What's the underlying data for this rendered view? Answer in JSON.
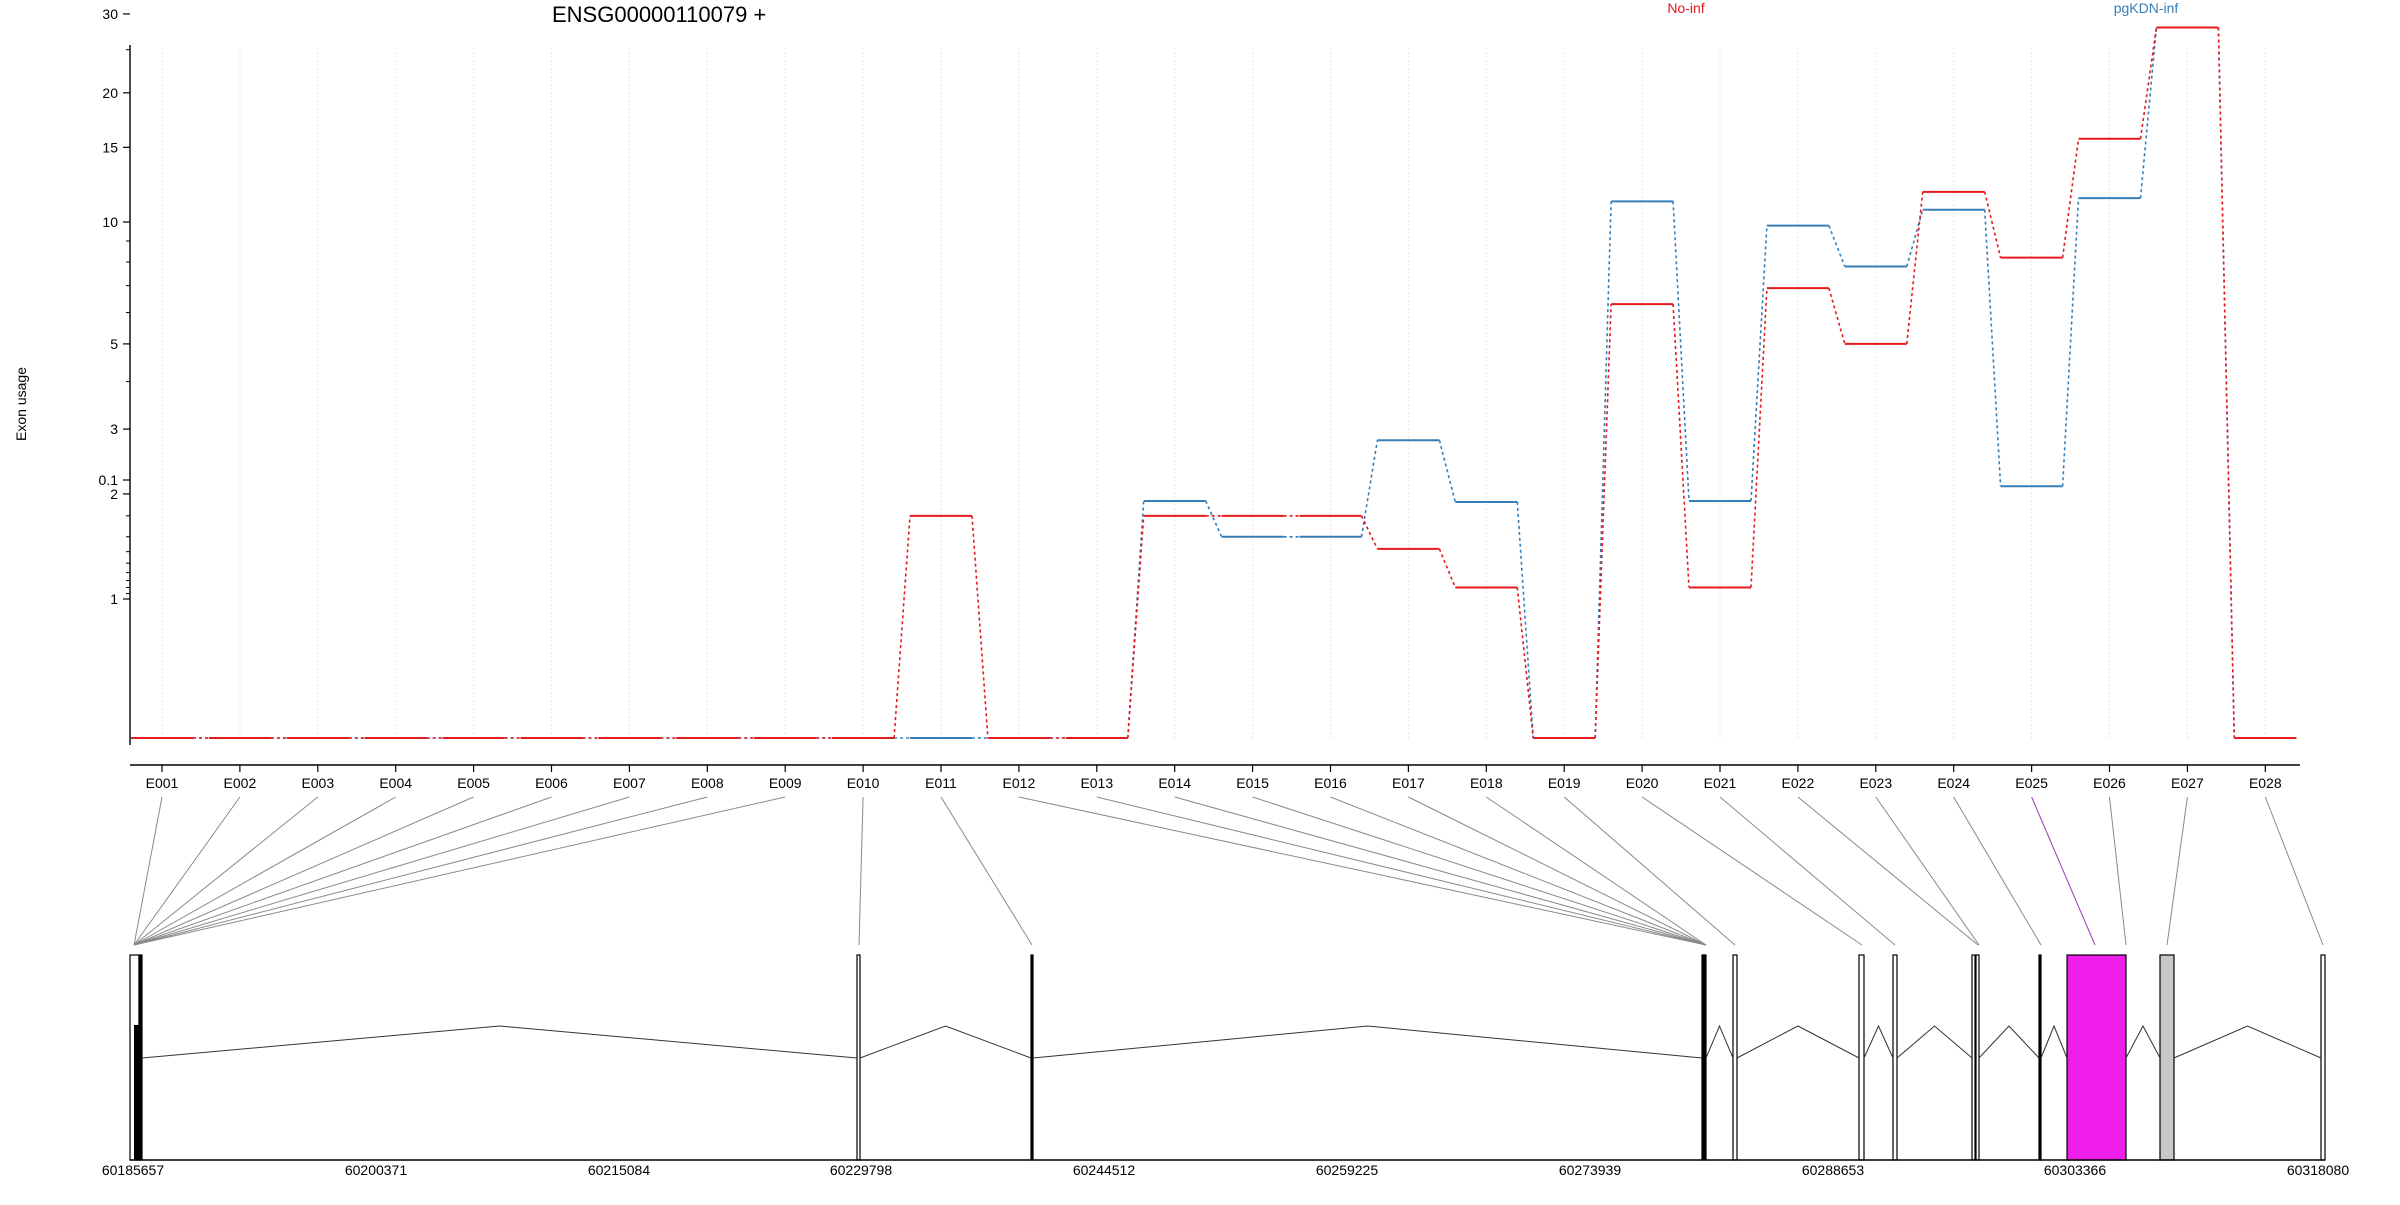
{
  "chart_data": {
    "type": "line",
    "title": "ENSG00000110079 +",
    "xlabel": "",
    "ylabel": "Exon usage",
    "y_scale": "log",
    "grid": true,
    "legend_placement": "top",
    "categories": [
      "E001",
      "E002",
      "E003",
      "E004",
      "E005",
      "E006",
      "E007",
      "E008",
      "E009",
      "E010",
      "E011",
      "E012",
      "E013",
      "E014",
      "E015",
      "E016",
      "E017",
      "E018",
      "E019",
      "E020",
      "E021",
      "E022",
      "E023",
      "E024",
      "E025",
      "E026",
      "E027",
      "E028"
    ],
    "y_ticks": [
      {
        "value": 0.1,
        "label": "0.1"
      },
      {
        "value": 1,
        "label": "1"
      },
      {
        "value": 2,
        "label": "2"
      },
      {
        "value": 3,
        "label": "3"
      },
      {
        "value": 5,
        "label": "5"
      },
      {
        "value": 10,
        "label": "10"
      },
      {
        "value": 15,
        "label": "15"
      },
      {
        "value": 20,
        "label": "20"
      },
      {
        "value": 30,
        "label": "30"
      }
    ],
    "series": [
      {
        "name": "No-inf",
        "color": "#e41a1c",
        "values": [
          0,
          0,
          0,
          0,
          0,
          0,
          0,
          0,
          0,
          0,
          0.2,
          0,
          0,
          0.2,
          0.2,
          0.2,
          1.4,
          0.8,
          0,
          6.3,
          0.8,
          6.9,
          5.0,
          11.8,
          8.2,
          15.7,
          28.0,
          0
        ]
      },
      {
        "name": "pgKDN-inf",
        "color": "#377eb8",
        "values": [
          0,
          0,
          0,
          0,
          0,
          0,
          0,
          0,
          0,
          0,
          0,
          0,
          0,
          0.15,
          0.3,
          0.3,
          2.8,
          1.9,
          0,
          11.2,
          0.15,
          9.8,
          7.8,
          10.7,
          2.1,
          11.4,
          28.0,
          0
        ]
      }
    ],
    "gene_model": {
      "coordinate_labels": [
        "60185657",
        "60200371",
        "60215084",
        "60229798",
        "60244512",
        "60259225",
        "60273939",
        "60288653",
        "60303366",
        "60318080"
      ],
      "highlight_exon": "E025",
      "highlight_color": "#ee1de9"
    }
  }
}
